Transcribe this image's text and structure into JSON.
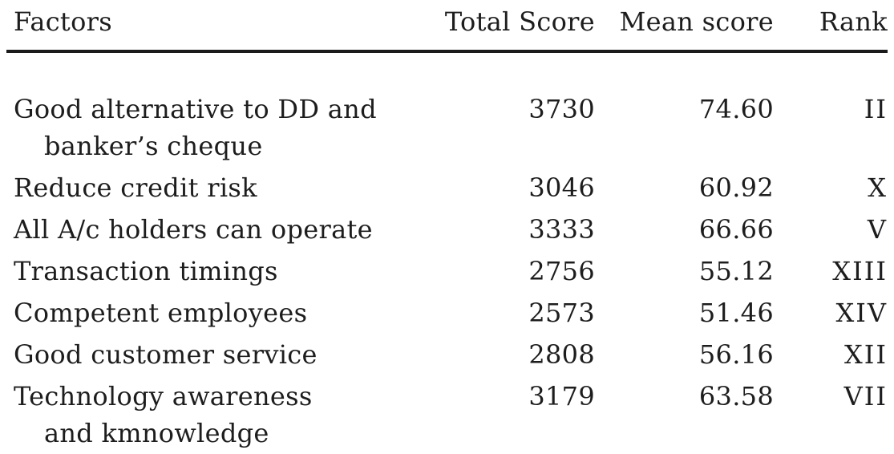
{
  "theme": {
    "text_color": "#1d1d1d",
    "rule_color": "#1a1a1a",
    "background": "#ffffff"
  },
  "table": {
    "columns": {
      "factor": "Factors",
      "total": "Total Score",
      "mean": "Mean score",
      "rank": "Rank"
    },
    "rows": [
      {
        "factor_line1": "Good alternative to DD and",
        "factor_line2": "banker’s cheque",
        "total": "3730",
        "mean": "74.60",
        "rank": "II"
      },
      {
        "factor_line1": "Reduce credit risk",
        "total": "3046",
        "mean": "60.92",
        "rank": "X"
      },
      {
        "factor_line1": "All A/c holders can operate",
        "total": "3333",
        "mean": "66.66",
        "rank": "V"
      },
      {
        "factor_line1": "Transaction timings",
        "total": "2756",
        "mean": "55.12",
        "rank": "XIII"
      },
      {
        "factor_line1": "Competent employees",
        "total": "2573",
        "mean": "51.46",
        "rank": "XIV"
      },
      {
        "factor_line1": "Good customer service",
        "total": "2808",
        "mean": "56.16",
        "rank": "XII"
      },
      {
        "factor_line1": "Technology awareness",
        "factor_line2": "and kmnowledge",
        "total": "3179",
        "mean": "63.58",
        "rank": "VII"
      }
    ]
  }
}
